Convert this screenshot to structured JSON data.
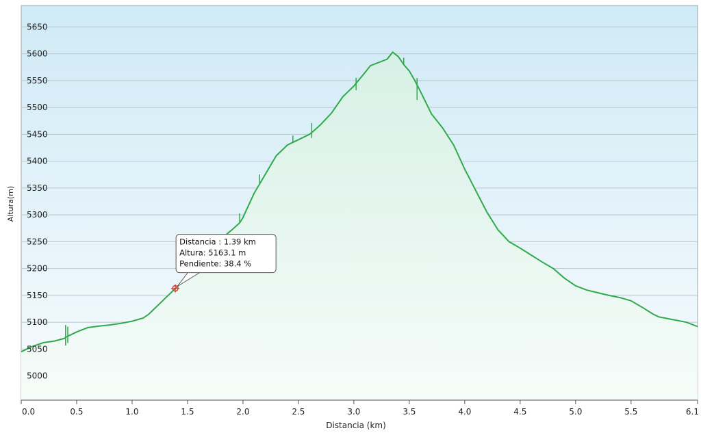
{
  "chart_data": {
    "type": "area",
    "xlabel": "Distancia  (km)",
    "ylabel": "Altura(m)",
    "xlim": [
      0,
      6.1
    ],
    "ylim": [
      4955,
      5690
    ],
    "x_ticks": [
      0,
      0.5,
      1,
      1.5,
      2,
      2.5,
      3,
      3.5,
      4,
      4.5,
      5,
      5.5,
      6.1
    ],
    "x_tick_labels": [
      "0.0",
      "0.5",
      "1.0",
      "1.5",
      "2.0",
      "2.5",
      "3.0",
      "3.5",
      "4.0",
      "4.5",
      "5.0",
      "5.5",
      "6.1"
    ],
    "y_ticks": [
      5000,
      5050,
      5100,
      5150,
      5200,
      5250,
      5300,
      5350,
      5400,
      5450,
      5500,
      5550,
      5600,
      5650
    ],
    "y_tick_labels": [
      "5000",
      "5050",
      "5100",
      "5150",
      "5200",
      "5250",
      "5300",
      "5350",
      "5400",
      "5450",
      "5500",
      "5550",
      "5600",
      "5650"
    ],
    "grid": "horizontal",
    "colors": {
      "line": "#2eaa4a",
      "fill_top": "#d7f0e6",
      "fill_bottom": "#f6fcf9",
      "bg_top": "#cfeaf6",
      "bg_bottom": "#f7fbfd",
      "marker": "#e53935"
    },
    "series": [
      {
        "x": [
          0,
          0.1,
          0.2,
          0.3,
          0.39,
          0.4,
          0.41,
          0.43,
          0.5,
          0.6,
          0.7,
          0.8,
          0.9,
          1.0,
          1.1,
          1.15,
          1.2,
          1.25,
          1.3,
          1.35,
          1.39,
          1.45,
          1.5,
          1.6,
          1.7,
          1.8,
          1.9,
          1.97,
          2.0,
          2.1,
          2.2,
          2.3,
          2.4,
          2.5,
          2.55,
          2.6,
          2.63,
          2.7,
          2.8,
          2.9,
          3.0,
          3.1,
          3.15,
          3.2,
          3.3,
          3.35,
          3.4,
          3.45,
          3.5,
          3.55,
          3.6,
          3.7,
          3.8,
          3.9,
          4.0,
          4.1,
          4.2,
          4.3,
          4.4,
          4.5,
          4.6,
          4.7,
          4.8,
          4.9,
          5.0,
          5.1,
          5.2,
          5.3,
          5.4,
          5.5,
          5.6,
          5.7,
          5.75,
          5.8,
          5.9,
          6.0,
          6.1
        ],
        "values": [
          5045,
          5055,
          5062,
          5065,
          5070,
          5072,
          5073,
          5075,
          5082,
          5090,
          5093,
          5095,
          5098,
          5102,
          5108,
          5115,
          5125,
          5135,
          5145,
          5155,
          5163.1,
          5175,
          5190,
          5215,
          5235,
          5255,
          5272,
          5285,
          5295,
          5340,
          5375,
          5410,
          5430,
          5440,
          5445,
          5450,
          5455,
          5468,
          5490,
          5520,
          5540,
          5565,
          5578,
          5582,
          5590,
          5603,
          5595,
          5580,
          5568,
          5550,
          5530,
          5488,
          5462,
          5430,
          5385,
          5345,
          5305,
          5272,
          5250,
          5238,
          5225,
          5212,
          5200,
          5182,
          5168,
          5160,
          5155,
          5150,
          5146,
          5140,
          5128,
          5115,
          5110,
          5108,
          5104,
          5100,
          5092
        ]
      }
    ],
    "tooltip": {
      "x": 1.39,
      "y": 5163.1,
      "lines": [
        "Distancia  : 1.39 km",
        "Altura: 5163.1 m",
        "Pendiente: 38.4 %"
      ]
    }
  }
}
